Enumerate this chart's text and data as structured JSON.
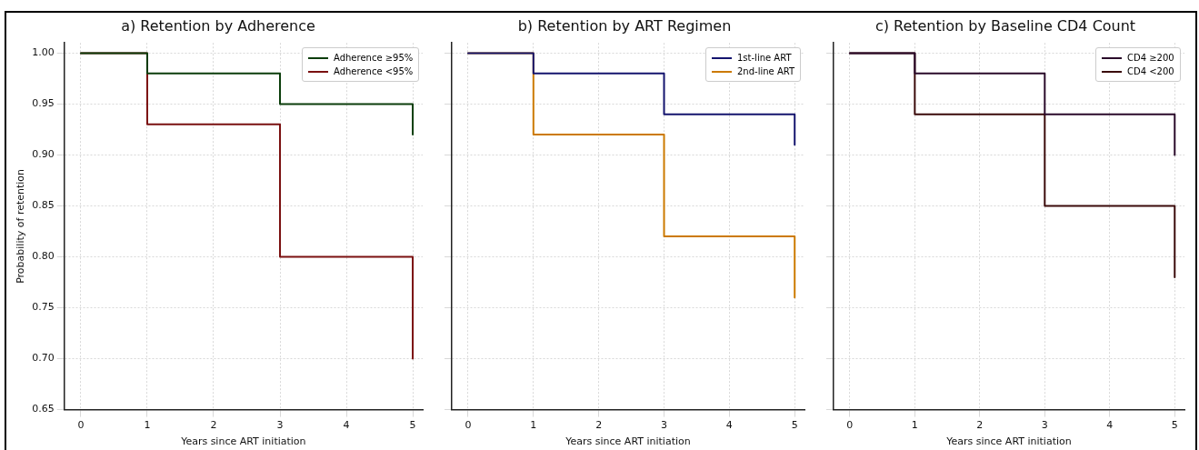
{
  "chart_data": [
    {
      "type": "step",
      "title": "a) Retention by Adherence",
      "xlabel": "Years since ART initiation",
      "ylabel": "Probability of retention",
      "x": [
        0,
        1,
        3,
        5
      ],
      "xlim": [
        -0.25,
        5.15
      ],
      "xticks": [
        0,
        1,
        2,
        3,
        4,
        5
      ],
      "ylim": [
        0.65,
        1.01
      ],
      "yticks": [
        0.65,
        {
          "value": 0.7,
          "label": "0.70"
        },
        0.75,
        {
          "value": 0.8,
          "label": "0.80"
        },
        0.85,
        {
          "value": 0.9,
          "label": "0.90"
        },
        0.95,
        {
          "value": 1.0,
          "label": "1.00"
        }
      ],
      "grid": true,
      "legend": "top right",
      "series": [
        {
          "name": "Adherence ≥95%",
          "color": "#0b3d0b",
          "values": [
            1.0,
            0.98,
            0.95,
            0.92
          ]
        },
        {
          "name": "Adherence <95%",
          "color": "#7a1010",
          "values": [
            1.0,
            0.93,
            0.8,
            0.7
          ]
        }
      ]
    },
    {
      "type": "step",
      "title": "b) Retention by ART Regimen",
      "xlabel": "Years since ART initiation",
      "x": [
        0,
        1,
        3,
        5
      ],
      "xlim": [
        -0.25,
        5.15
      ],
      "xticks": [
        0,
        1,
        2,
        3,
        4,
        5
      ],
      "ylim": [
        0.65,
        1.01
      ],
      "yticks": [
        0.65,
        0.7,
        0.75,
        0.8,
        0.85,
        0.9,
        0.95,
        1.0
      ],
      "tick_labels": "x",
      "grid": true,
      "legend": "top right",
      "series": [
        {
          "name": "1st-line ART",
          "color": "#14146e",
          "values": [
            1.0,
            0.98,
            0.94,
            0.91
          ]
        },
        {
          "name": "2nd-line ART",
          "color": "#cc7a00",
          "values": [
            1.0,
            0.92,
            0.82,
            0.76
          ]
        }
      ]
    },
    {
      "type": "step",
      "title": "c) Retention by Baseline CD4 Count",
      "xlabel": "Years since ART initiation",
      "x": [
        0,
        1,
        3,
        5
      ],
      "xlim": [
        -0.25,
        5.15
      ],
      "xticks": [
        0,
        1,
        2,
        3,
        4,
        5
      ],
      "ylim": [
        0.65,
        1.01
      ],
      "yticks": [
        0.65,
        0.7,
        0.75,
        0.8,
        0.85,
        0.9,
        0.95,
        1.0
      ],
      "tick_labels": "x",
      "grid": true,
      "legend": "top right",
      "series": [
        {
          "name": "CD4 ≥200",
          "color": "#2a0a2a",
          "values": [
            1.0,
            0.98,
            0.94,
            0.9
          ]
        },
        {
          "name": "CD4 <200",
          "color": "#3a0a0a",
          "values": [
            1.0,
            0.94,
            0.85,
            0.78
          ]
        }
      ]
    }
  ]
}
